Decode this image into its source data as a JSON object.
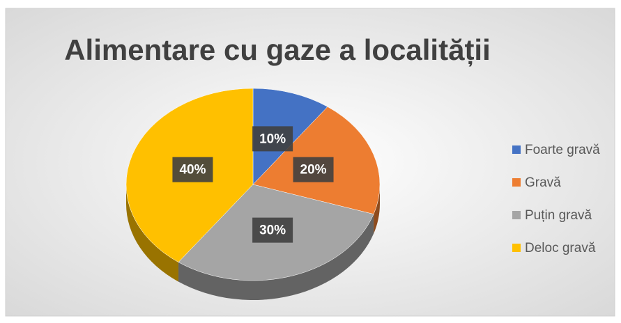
{
  "chart_data": {
    "type": "pie",
    "title": "Alimentare cu gaze a localității",
    "categories": [
      "Foarte gravă",
      "Gravă",
      "Puțin gravă",
      "Deloc gravă"
    ],
    "values": [
      10,
      20,
      30,
      40
    ],
    "value_labels": [
      "10%",
      "20%",
      "30%",
      "40%"
    ],
    "colors": [
      "#4472c4",
      "#ed7d31",
      "#a5a5a5",
      "#ffc000"
    ],
    "legend": "right"
  }
}
